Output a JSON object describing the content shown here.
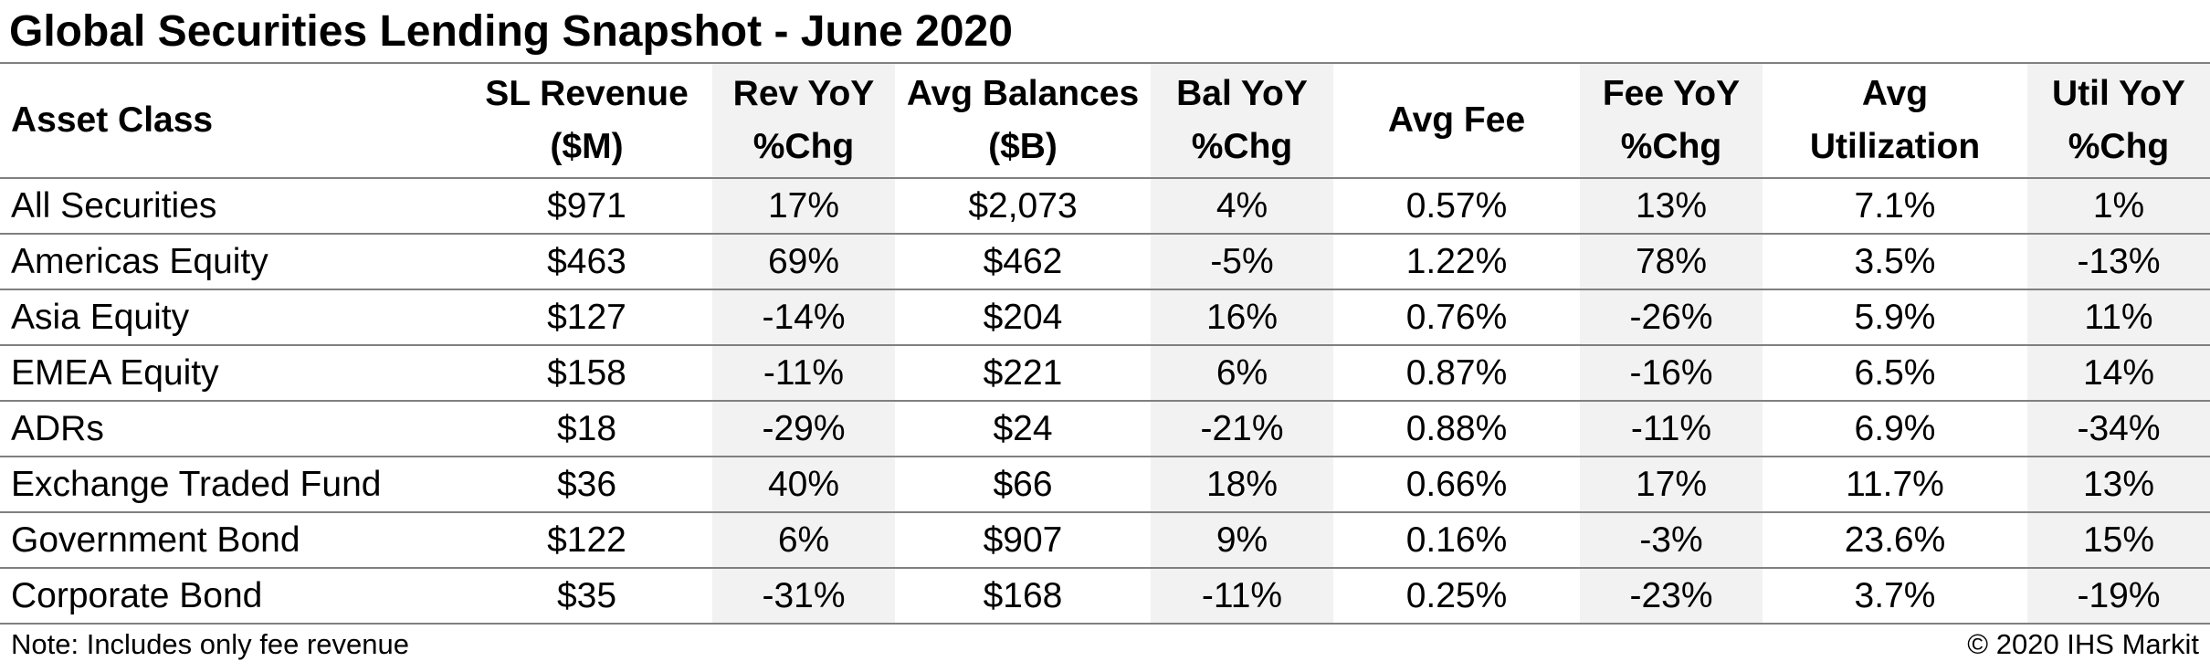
{
  "title": "Global Securities Lending Snapshot - June 2020",
  "table": {
    "headers": [
      [
        "Asset Class"
      ],
      [
        "SL Revenue",
        "($M)"
      ],
      [
        "Rev YoY",
        "%Chg"
      ],
      [
        "Avg Balances",
        "($B)"
      ],
      [
        "Bal YoY",
        "%Chg"
      ],
      [
        "Avg Fee"
      ],
      [
        "Fee YoY",
        "%Chg"
      ],
      [
        "Avg",
        "Utilization"
      ],
      [
        "Util YoY",
        "%Chg"
      ]
    ],
    "rows": [
      [
        "All Securities",
        "$971",
        "17%",
        "$2,073",
        "4%",
        "0.57%",
        "13%",
        "7.1%",
        "1%"
      ],
      [
        "Americas Equity",
        "$463",
        "69%",
        "$462",
        "-5%",
        "1.22%",
        "78%",
        "3.5%",
        "-13%"
      ],
      [
        "Asia Equity",
        "$127",
        "-14%",
        "$204",
        "16%",
        "0.76%",
        "-26%",
        "5.9%",
        "11%"
      ],
      [
        "EMEA Equity",
        "$158",
        "-11%",
        "$221",
        "6%",
        "0.87%",
        "-16%",
        "6.5%",
        "14%"
      ],
      [
        "ADRs",
        "$18",
        "-29%",
        "$24",
        "-21%",
        "0.88%",
        "-11%",
        "6.9%",
        "-34%"
      ],
      [
        "Exchange Traded Fund",
        "$36",
        "40%",
        "$66",
        "18%",
        "0.66%",
        "17%",
        "11.7%",
        "13%"
      ],
      [
        "Government Bond",
        "$122",
        "6%",
        "$907",
        "9%",
        "0.16%",
        "-3%",
        "23.6%",
        "15%"
      ],
      [
        "Corporate Bond",
        "$35",
        "-31%",
        "$168",
        "-11%",
        "0.25%",
        "-23%",
        "3.7%",
        "-19%"
      ]
    ]
  },
  "chart_data": {
    "type": "table",
    "title": "Global Securities Lending Snapshot - June 2020",
    "columns": [
      "Asset Class",
      "SL Revenue ($M)",
      "Rev YoY %Chg",
      "Avg Balances ($B)",
      "Bal YoY %Chg",
      "Avg Fee",
      "Fee YoY %Chg",
      "Avg Utilization",
      "Util YoY %Chg"
    ],
    "rows": [
      {
        "asset_class": "All Securities",
        "sl_revenue_musd": 971,
        "rev_yoy_pct": 17,
        "avg_balances_busd": 2073,
        "bal_yoy_pct": 4,
        "avg_fee_pct": 0.57,
        "fee_yoy_pct": 13,
        "avg_utilization_pct": 7.1,
        "util_yoy_pct": 1
      },
      {
        "asset_class": "Americas Equity",
        "sl_revenue_musd": 463,
        "rev_yoy_pct": 69,
        "avg_balances_busd": 462,
        "bal_yoy_pct": -5,
        "avg_fee_pct": 1.22,
        "fee_yoy_pct": 78,
        "avg_utilization_pct": 3.5,
        "util_yoy_pct": -13
      },
      {
        "asset_class": "Asia Equity",
        "sl_revenue_musd": 127,
        "rev_yoy_pct": -14,
        "avg_balances_busd": 204,
        "bal_yoy_pct": 16,
        "avg_fee_pct": 0.76,
        "fee_yoy_pct": -26,
        "avg_utilization_pct": 5.9,
        "util_yoy_pct": 11
      },
      {
        "asset_class": "EMEA Equity",
        "sl_revenue_musd": 158,
        "rev_yoy_pct": -11,
        "avg_balances_busd": 221,
        "bal_yoy_pct": 6,
        "avg_fee_pct": 0.87,
        "fee_yoy_pct": -16,
        "avg_utilization_pct": 6.5,
        "util_yoy_pct": 14
      },
      {
        "asset_class": "ADRs",
        "sl_revenue_musd": 18,
        "rev_yoy_pct": -29,
        "avg_balances_busd": 24,
        "bal_yoy_pct": -21,
        "avg_fee_pct": 0.88,
        "fee_yoy_pct": -11,
        "avg_utilization_pct": 6.9,
        "util_yoy_pct": -34
      },
      {
        "asset_class": "Exchange Traded Fund",
        "sl_revenue_musd": 36,
        "rev_yoy_pct": 40,
        "avg_balances_busd": 66,
        "bal_yoy_pct": 18,
        "avg_fee_pct": 0.66,
        "fee_yoy_pct": 17,
        "avg_utilization_pct": 11.7,
        "util_yoy_pct": 13
      },
      {
        "asset_class": "Government Bond",
        "sl_revenue_musd": 122,
        "rev_yoy_pct": 6,
        "avg_balances_busd": 907,
        "bal_yoy_pct": 9,
        "avg_fee_pct": 0.16,
        "fee_yoy_pct": -3,
        "avg_utilization_pct": 23.6,
        "util_yoy_pct": 15
      },
      {
        "asset_class": "Corporate Bond",
        "sl_revenue_musd": 35,
        "rev_yoy_pct": -31,
        "avg_balances_busd": 168,
        "bal_yoy_pct": -11,
        "avg_fee_pct": 0.25,
        "fee_yoy_pct": -23,
        "avg_utilization_pct": 3.7,
        "util_yoy_pct": -19
      }
    ]
  },
  "footer": {
    "note": "Note: Includes only fee revenue",
    "copyright": "© 2020 IHS Markit"
  },
  "colors": {
    "shaded_column": "#f2f2f2",
    "rule": "#808080",
    "text": "#000000"
  }
}
